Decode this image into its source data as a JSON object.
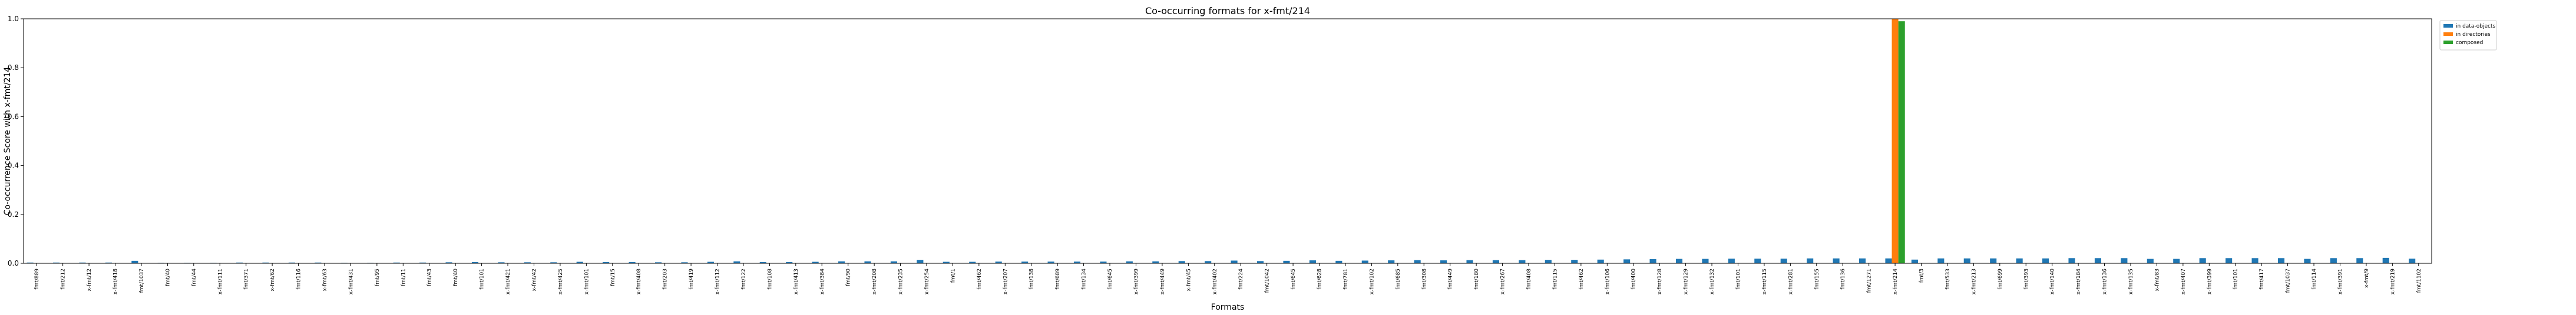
{
  "chart_data": {
    "type": "bar",
    "title": "Co-occurring formats for x-fmt/214",
    "xlabel": "Formats",
    "ylabel": "Co-occurrence Score with x-fmt/214",
    "ylim": [
      0,
      1.0
    ],
    "yticks": [
      "0.0",
      "0.2",
      "0.4",
      "0.6",
      "0.8",
      "1.0"
    ],
    "grid": false,
    "legend_position": "outside-top-right",
    "categories": [
      "fmt/889",
      "fmt/212",
      "x-fmt/12",
      "x-fmt/418",
      "fmt/1037",
      "fmt/40",
      "fmt/44",
      "x-fmt/111",
      "fmt/371",
      "x-fmt/62",
      "fmt/116",
      "x-fmt/63",
      "x-fmt/431",
      "fmt/95",
      "fmt/11",
      "fmt/43",
      "fmt/40",
      "fmt/101",
      "x-fmt/421",
      "x-fmt/42",
      "x-fmt/425",
      "x-fmt/101",
      "fmt/15",
      "x-fmt/408",
      "fmt/203",
      "fmt/419",
      "x-fmt/112",
      "fmt/122",
      "fmt/108",
      "x-fmt/413",
      "x-fmt/384",
      "fmt/90",
      "x-fmt/208",
      "x-fmt/235",
      "x-fmt/254",
      "fmt/1",
      "fmt/462",
      "x-fmt/207",
      "fmt/138",
      "fmt/689",
      "fmt/134",
      "fmt/645",
      "x-fmt/399",
      "x-fmt/449",
      "x-fmt/45",
      "x-fmt/402",
      "fmt/224",
      "fmt/1042",
      "fmt/645",
      "fmt/628",
      "fmt/781",
      "x-fmt/102",
      "fmt/685",
      "fmt/308",
      "fmt/449",
      "fmt/180",
      "x-fmt/267",
      "fmt/408",
      "fmt/115",
      "fmt/462",
      "x-fmt/106",
      "fmt/400",
      "x-fmt/128",
      "x-fmt/129",
      "x-fmt/132",
      "fmt/101",
      "x-fmt/115",
      "x-fmt/281",
      "fmt/155",
      "fmt/136",
      "fmt/1271",
      "x-fmt/214",
      "fmt/3",
      "fmt/533",
      "x-fmt/213",
      "fmt/699",
      "fmt/393",
      "x-fmt/140",
      "x-fmt/184",
      "x-fmt/136",
      "x-fmt/135",
      "x-fmt/83",
      "x-fmt/407",
      "x-fmt/399",
      "fmt/101",
      "fmt/417",
      "fmt/1037",
      "fmt/114",
      "x-fmt/391",
      "x-fmt/9",
      "x-fmt/219",
      "fmt/1102"
    ],
    "series": [
      {
        "name": "in data-objects",
        "color": "#1f77b4",
        "values": [
          0.003,
          0.003,
          0.003,
          0.003,
          0.01,
          0.002,
          0.002,
          0.002,
          0.003,
          0.003,
          0.003,
          0.003,
          0.002,
          0.002,
          0.003,
          0.003,
          0.004,
          0.005,
          0.004,
          0.004,
          0.004,
          0.006,
          0.005,
          0.005,
          0.004,
          0.004,
          0.006,
          0.008,
          0.005,
          0.005,
          0.006,
          0.008,
          0.008,
          0.008,
          0.014,
          0.006,
          0.006,
          0.007,
          0.007,
          0.007,
          0.007,
          0.007,
          0.008,
          0.008,
          0.009,
          0.009,
          0.011,
          0.009,
          0.01,
          0.012,
          0.01,
          0.011,
          0.012,
          0.013,
          0.012,
          0.013,
          0.013,
          0.013,
          0.014,
          0.014,
          0.015,
          0.016,
          0.017,
          0.018,
          0.018,
          0.019,
          0.019,
          0.019,
          0.02,
          0.02,
          0.02,
          0.02,
          0.015,
          0.02,
          0.02,
          0.02,
          0.02,
          0.02,
          0.021,
          0.021,
          0.021,
          0.018,
          0.018,
          0.021,
          0.021,
          0.021,
          0.021,
          0.018,
          0.021,
          0.021,
          0.022,
          0.019
        ]
      },
      {
        "name": "in directories",
        "color": "#ff7f0e",
        "values": [
          0,
          0,
          0,
          0,
          0,
          0,
          0,
          0,
          0,
          0,
          0,
          0,
          0,
          0,
          0,
          0,
          0,
          0,
          0,
          0,
          0,
          0,
          0,
          0,
          0,
          0,
          0,
          0,
          0,
          0,
          0,
          0,
          0,
          0,
          0,
          0,
          0,
          0,
          0,
          0,
          0,
          0,
          0,
          0,
          0,
          0,
          0,
          0,
          0,
          0,
          0,
          0,
          0,
          0,
          0,
          0,
          0,
          0,
          0,
          0,
          0,
          0,
          0,
          0,
          0,
          0,
          0,
          0,
          0,
          0,
          0,
          1.0,
          0,
          0,
          0,
          0,
          0,
          0,
          0,
          0,
          0,
          0,
          0,
          0,
          0,
          0,
          0,
          0,
          0,
          0,
          0,
          0
        ]
      },
      {
        "name": "composed",
        "color": "#2ca02c",
        "values": [
          0,
          0,
          0,
          0,
          0,
          0,
          0,
          0,
          0,
          0,
          0,
          0,
          0,
          0,
          0,
          0,
          0,
          0,
          0,
          0,
          0,
          0,
          0,
          0,
          0,
          0,
          0,
          0,
          0,
          0,
          0,
          0,
          0,
          0,
          0,
          0,
          0,
          0,
          0,
          0,
          0,
          0,
          0,
          0,
          0,
          0,
          0,
          0,
          0,
          0,
          0,
          0,
          0,
          0,
          0,
          0,
          0,
          0,
          0,
          0,
          0,
          0,
          0,
          0,
          0,
          0,
          0,
          0,
          0,
          0,
          0,
          0.99,
          0,
          0,
          0,
          0,
          0,
          0,
          0,
          0,
          0,
          0,
          0,
          0,
          0,
          0,
          0,
          0,
          0,
          0,
          0,
          0
        ]
      }
    ]
  }
}
